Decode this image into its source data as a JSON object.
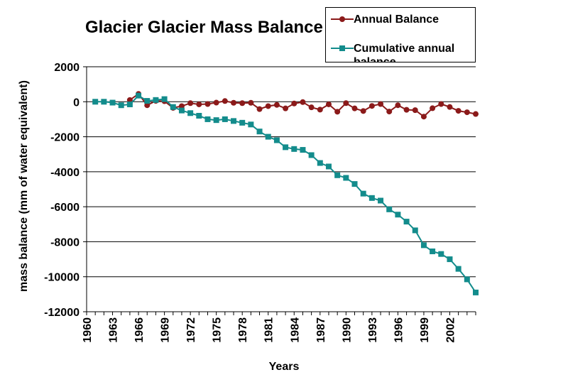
{
  "chart_data": {
    "type": "line",
    "title": "Glacier Glacier Mass Balance",
    "xlabel": "Years",
    "ylabel": "mass balance (mm of water equivalent)",
    "xlim": [
      1960,
      2005
    ],
    "ylim": [
      -12000,
      2000
    ],
    "x_ticks": [
      "1960",
      "1963",
      "1966",
      "1969",
      "1972",
      "1975",
      "1978",
      "1981",
      "1984",
      "1987",
      "1990",
      "1993",
      "1996",
      "1999",
      "2002"
    ],
    "y_ticks": [
      "2000",
      "0",
      "-2000",
      "-4000",
      "-6000",
      "-8000",
      "-10000",
      "-12000"
    ],
    "grid": true,
    "legend_position": "top-right",
    "colors": {
      "annual": "#8B1A1A",
      "cumulative": "#138C8C"
    },
    "series": [
      {
        "name": "Annual Balance",
        "x": [
          1965,
          1966,
          1967,
          1968,
          1969,
          1970,
          1971,
          1972,
          1973,
          1974,
          1975,
          1976,
          1977,
          1978,
          1979,
          1980,
          1981,
          1982,
          1983,
          1984,
          1985,
          1986,
          1987,
          1988,
          1989,
          1990,
          1991,
          1992,
          1993,
          1994,
          1995,
          1996,
          1997,
          1998,
          1999,
          2000,
          2001,
          2002,
          2003,
          2004,
          2005
        ],
        "values": [
          100,
          450,
          -200,
          50,
          30,
          -350,
          -250,
          -80,
          -150,
          -130,
          -50,
          40,
          -60,
          -80,
          -60,
          -420,
          -250,
          -180,
          -380,
          -100,
          -20,
          -320,
          -450,
          -150,
          -570,
          -80,
          -380,
          -530,
          -240,
          -130,
          -560,
          -200,
          -460,
          -480,
          -850,
          -370,
          -130,
          -300,
          -520,
          -600,
          -700
        ]
      },
      {
        "name": "Cumulative annual balance",
        "x": [
          1961,
          1962,
          1963,
          1964,
          1965,
          1966,
          1967,
          1968,
          1969,
          1970,
          1971,
          1972,
          1973,
          1974,
          1975,
          1976,
          1977,
          1978,
          1979,
          1980,
          1981,
          1982,
          1983,
          1984,
          1985,
          1986,
          1987,
          1988,
          1989,
          1990,
          1991,
          1992,
          1993,
          1994,
          1995,
          1996,
          1997,
          1998,
          1999,
          2000,
          2001,
          2002,
          2003,
          2004,
          2005
        ],
        "values": [
          0,
          0,
          -50,
          -200,
          -150,
          350,
          50,
          100,
          150,
          -300,
          -500,
          -650,
          -800,
          -1000,
          -1050,
          -1000,
          -1100,
          -1200,
          -1300,
          -1700,
          -2000,
          -2200,
          -2600,
          -2700,
          -2750,
          -3050,
          -3500,
          -3700,
          -4200,
          -4350,
          -4700,
          -5250,
          -5500,
          -5650,
          -6150,
          -6450,
          -6850,
          -7350,
          -8200,
          -8550,
          -8700,
          -9000,
          -9550,
          -10150,
          -10900
        ]
      }
    ]
  }
}
